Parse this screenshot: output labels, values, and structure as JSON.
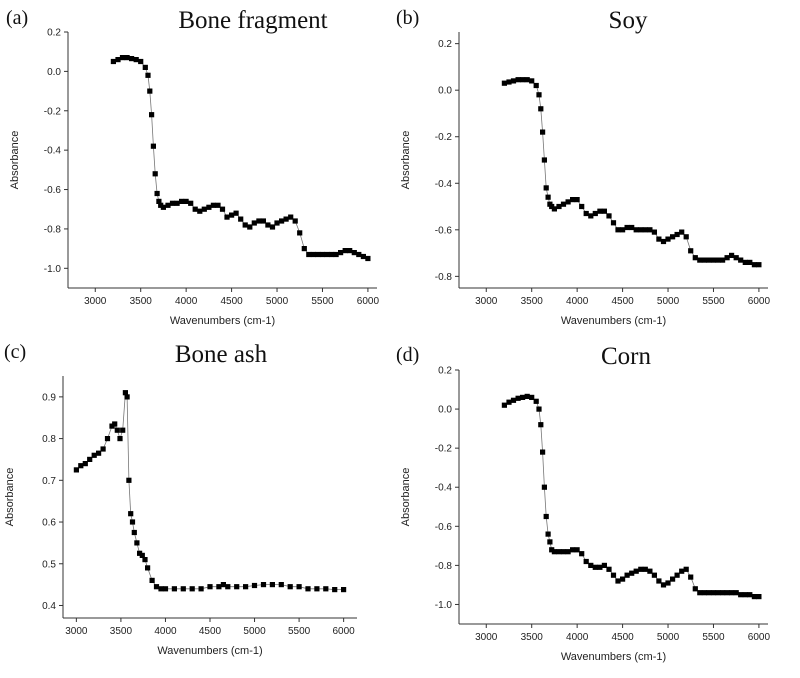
{
  "chart_data": [
    {
      "type": "scatter",
      "panel_label": "(a)",
      "title": "Bone fragment",
      "xlabel": "Wavenumbers (cm-1)",
      "ylabel": "Absorbance",
      "xlim": [
        2700,
        6100
      ],
      "ylim": [
        -1.1,
        0.2
      ],
      "xticks": [
        3000,
        3500,
        4000,
        4500,
        5000,
        5500,
        6000
      ],
      "yticks": [
        -1.0,
        -0.8,
        -0.6,
        -0.4,
        -0.2,
        0.0,
        0.2
      ],
      "xtick_labels": [
        "3000",
        "3500",
        "4000",
        "4500",
        "5000",
        "5500",
        "6000"
      ],
      "ytick_labels": [
        "-1.0",
        "-0.8",
        "-0.6",
        "-0.4",
        "-0.2",
        "0.0",
        "0.2"
      ],
      "series": [
        {
          "x": [
            3200,
            3250,
            3300,
            3350,
            3400,
            3450,
            3500,
            3550,
            3580,
            3600,
            3620,
            3640,
            3660,
            3680,
            3700,
            3720,
            3750,
            3800,
            3850,
            3900,
            3950,
            4000,
            4050,
            4100,
            4150,
            4200,
            4250,
            4300,
            4350,
            4400,
            4450,
            4500,
            4550,
            4600,
            4650,
            4700,
            4750,
            4800,
            4850,
            4900,
            4950,
            5000,
            5050,
            5100,
            5150,
            5200,
            5250,
            5300,
            5350,
            5400,
            5450,
            5500,
            5550,
            5600,
            5650,
            5700,
            5750,
            5800,
            5850,
            5900,
            5950,
            6000
          ],
          "y": [
            0.05,
            0.06,
            0.07,
            0.07,
            0.065,
            0.06,
            0.05,
            0.02,
            -0.02,
            -0.1,
            -0.22,
            -0.38,
            -0.52,
            -0.62,
            -0.66,
            -0.68,
            -0.69,
            -0.68,
            -0.67,
            -0.67,
            -0.66,
            -0.66,
            -0.67,
            -0.7,
            -0.71,
            -0.7,
            -0.69,
            -0.68,
            -0.68,
            -0.7,
            -0.74,
            -0.73,
            -0.72,
            -0.75,
            -0.78,
            -0.79,
            -0.77,
            -0.76,
            -0.76,
            -0.78,
            -0.79,
            -0.77,
            -0.76,
            -0.75,
            -0.74,
            -0.76,
            -0.82,
            -0.9,
            -0.93,
            -0.93,
            -0.93,
            -0.93,
            -0.93,
            -0.93,
            -0.93,
            -0.92,
            -0.91,
            -0.91,
            -0.92,
            -0.93,
            -0.94,
            -0.95
          ]
        }
      ]
    },
    {
      "type": "scatter",
      "panel_label": "(b)",
      "title": "Soy",
      "xlabel": "Wavenumbers (cm-1)",
      "ylabel": "Absorbance",
      "xlim": [
        2700,
        6100
      ],
      "ylim": [
        -0.85,
        0.25
      ],
      "xticks": [
        3000,
        3500,
        4000,
        4500,
        5000,
        5500,
        6000
      ],
      "yticks": [
        -0.8,
        -0.6,
        -0.4,
        -0.2,
        0.0,
        0.2
      ],
      "xtick_labels": [
        "3000",
        "3500",
        "4000",
        "4500",
        "5000",
        "5500",
        "6000"
      ],
      "ytick_labels": [
        "-0.8",
        "-0.6",
        "-0.4",
        "-0.2",
        "0.0",
        "0.2"
      ],
      "series": [
        {
          "x": [
            3200,
            3250,
            3300,
            3350,
            3400,
            3450,
            3500,
            3550,
            3580,
            3600,
            3620,
            3640,
            3660,
            3680,
            3700,
            3720,
            3750,
            3800,
            3850,
            3900,
            3950,
            4000,
            4050,
            4100,
            4150,
            4200,
            4250,
            4300,
            4350,
            4400,
            4450,
            4500,
            4550,
            4600,
            4650,
            4700,
            4750,
            4800,
            4850,
            4900,
            4950,
            5000,
            5050,
            5100,
            5150,
            5200,
            5250,
            5300,
            5350,
            5400,
            5450,
            5500,
            5550,
            5600,
            5650,
            5700,
            5750,
            5800,
            5850,
            5900,
            5950,
            6000
          ],
          "y": [
            0.03,
            0.035,
            0.04,
            0.045,
            0.045,
            0.045,
            0.04,
            0.02,
            -0.02,
            -0.08,
            -0.18,
            -0.3,
            -0.42,
            -0.46,
            -0.49,
            -0.5,
            -0.51,
            -0.5,
            -0.49,
            -0.48,
            -0.47,
            -0.47,
            -0.5,
            -0.53,
            -0.54,
            -0.53,
            -0.52,
            -0.52,
            -0.54,
            -0.57,
            -0.6,
            -0.6,
            -0.59,
            -0.59,
            -0.6,
            -0.6,
            -0.6,
            -0.6,
            -0.61,
            -0.64,
            -0.65,
            -0.64,
            -0.63,
            -0.62,
            -0.61,
            -0.63,
            -0.69,
            -0.72,
            -0.73,
            -0.73,
            -0.73,
            -0.73,
            -0.73,
            -0.73,
            -0.72,
            -0.71,
            -0.72,
            -0.73,
            -0.74,
            -0.74,
            -0.75,
            -0.75
          ]
        }
      ]
    },
    {
      "type": "scatter",
      "panel_label": "(c)",
      "title": "Bone ash",
      "xlabel": "Wavenumbers (cm-1)",
      "ylabel": "Absorbance",
      "xlim": [
        2850,
        6150
      ],
      "ylim": [
        0.37,
        0.95
      ],
      "xticks": [
        3000,
        3500,
        4000,
        4500,
        5000,
        5500,
        6000
      ],
      "yticks": [
        0.4,
        0.5,
        0.6,
        0.7,
        0.8,
        0.9
      ],
      "xtick_labels": [
        "3000",
        "3500",
        "4000",
        "4500",
        "5000",
        "5500",
        "6000"
      ],
      "ytick_labels": [
        "0.4",
        "0.5",
        "0.6",
        "0.7",
        "0.8",
        "0.9"
      ],
      "series": [
        {
          "x": [
            3000,
            3050,
            3100,
            3150,
            3200,
            3250,
            3300,
            3350,
            3400,
            3430,
            3460,
            3490,
            3520,
            3550,
            3570,
            3590,
            3610,
            3630,
            3650,
            3680,
            3710,
            3740,
            3770,
            3800,
            3850,
            3900,
            3950,
            4000,
            4100,
            4200,
            4300,
            4400,
            4500,
            4600,
            4650,
            4700,
            4800,
            4900,
            5000,
            5100,
            5200,
            5300,
            5400,
            5500,
            5600,
            5700,
            5800,
            5900,
            6000
          ],
          "y": [
            0.725,
            0.735,
            0.74,
            0.75,
            0.76,
            0.765,
            0.775,
            0.8,
            0.83,
            0.835,
            0.82,
            0.8,
            0.82,
            0.91,
            0.9,
            0.7,
            0.62,
            0.6,
            0.575,
            0.55,
            0.525,
            0.52,
            0.51,
            0.49,
            0.46,
            0.445,
            0.44,
            0.44,
            0.44,
            0.44,
            0.44,
            0.44,
            0.445,
            0.445,
            0.45,
            0.445,
            0.445,
            0.445,
            0.448,
            0.45,
            0.45,
            0.45,
            0.445,
            0.445,
            0.44,
            0.44,
            0.44,
            0.438,
            0.438
          ]
        }
      ]
    },
    {
      "type": "scatter",
      "panel_label": "(d)",
      "title": "Corn",
      "xlabel": "Wavenumbers (cm-1)",
      "ylabel": "Absorbance",
      "xlim": [
        2700,
        6100
      ],
      "ylim": [
        -1.1,
        0.2
      ],
      "xticks": [
        3000,
        3500,
        4000,
        4500,
        5000,
        5500,
        6000
      ],
      "yticks": [
        -1.0,
        -0.8,
        -0.6,
        -0.4,
        -0.2,
        0.0,
        0.2
      ],
      "xtick_labels": [
        "3000",
        "3500",
        "4000",
        "4500",
        "5000",
        "5500",
        "6000"
      ],
      "ytick_labels": [
        "-1.0",
        "-0.8",
        "-0.6",
        "-0.4",
        "-0.2",
        "0.0",
        "0.2"
      ],
      "series": [
        {
          "x": [
            3200,
            3250,
            3300,
            3350,
            3400,
            3450,
            3500,
            3550,
            3580,
            3600,
            3620,
            3640,
            3660,
            3680,
            3700,
            3720,
            3750,
            3800,
            3850,
            3900,
            3950,
            4000,
            4050,
            4100,
            4150,
            4200,
            4250,
            4300,
            4350,
            4400,
            4450,
            4500,
            4550,
            4600,
            4650,
            4700,
            4750,
            4800,
            4850,
            4900,
            4950,
            5000,
            5050,
            5100,
            5150,
            5200,
            5250,
            5300,
            5350,
            5400,
            5450,
            5500,
            5550,
            5600,
            5650,
            5700,
            5750,
            5800,
            5850,
            5900,
            5950,
            6000
          ],
          "y": [
            0.02,
            0.035,
            0.045,
            0.055,
            0.06,
            0.065,
            0.06,
            0.04,
            0.0,
            -0.08,
            -0.22,
            -0.4,
            -0.55,
            -0.64,
            -0.68,
            -0.72,
            -0.73,
            -0.73,
            -0.73,
            -0.73,
            -0.72,
            -0.72,
            -0.74,
            -0.78,
            -0.8,
            -0.81,
            -0.81,
            -0.8,
            -0.82,
            -0.85,
            -0.88,
            -0.87,
            -0.85,
            -0.84,
            -0.83,
            -0.82,
            -0.82,
            -0.83,
            -0.85,
            -0.88,
            -0.9,
            -0.89,
            -0.87,
            -0.85,
            -0.83,
            -0.82,
            -0.86,
            -0.92,
            -0.94,
            -0.94,
            -0.94,
            -0.94,
            -0.94,
            -0.94,
            -0.94,
            -0.94,
            -0.94,
            -0.95,
            -0.95,
            -0.95,
            -0.96,
            -0.96
          ]
        }
      ]
    }
  ]
}
